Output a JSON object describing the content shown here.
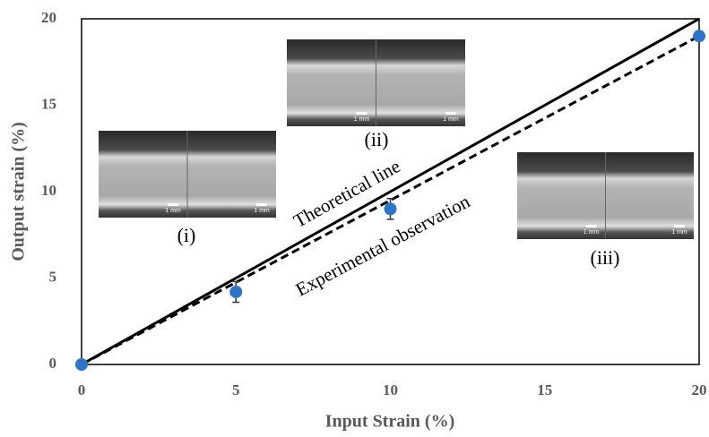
{
  "chart_data": {
    "type": "scatter",
    "xlabel": "Input Strain (%)",
    "ylabel": "Output strain (%)",
    "xlim": [
      0,
      20
    ],
    "ylim": [
      0,
      20
    ],
    "xticks": [
      0,
      5,
      10,
      15,
      20
    ],
    "yticks": [
      0,
      5,
      10,
      15,
      20
    ],
    "points": {
      "x": [
        0,
        5,
        10,
        20
      ],
      "values": [
        0,
        4.2,
        9,
        19
      ],
      "errors": [
        0,
        0.6,
        0.6,
        0
      ],
      "color": "#2e74c9"
    },
    "series": [
      {
        "name": "Theoretical line",
        "x": [
          0,
          20
        ],
        "values": [
          0,
          20
        ],
        "color": "#000000",
        "dashed": false
      },
      {
        "name": "Experimental observation",
        "x": [
          0,
          20
        ],
        "values": [
          0,
          19
        ],
        "color": "#000000",
        "dashed": true
      }
    ],
    "insets": [
      {
        "label": "(i)",
        "scale_bar": "1 mm"
      },
      {
        "label": "(ii)",
        "scale_bar": "1 mm"
      },
      {
        "label": "(iii)",
        "scale_bar": "1 mm"
      }
    ]
  }
}
